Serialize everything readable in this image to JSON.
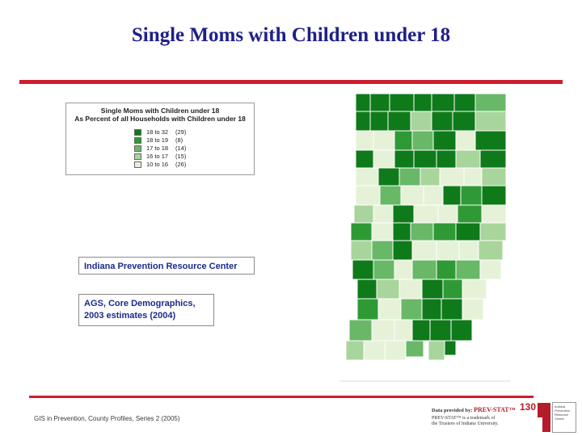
{
  "slide": {
    "title": "Single Moms with Children under 18"
  },
  "legend": {
    "title_line1": "Single Moms with Children under 18",
    "title_line2": "As Percent of all Households with Children under 18",
    "items": [
      {
        "range": "18 to 32",
        "count": "(29)",
        "color": "#0f7a1a"
      },
      {
        "range": "18 to 19",
        "count": "(8)",
        "color": "#2f9a35"
      },
      {
        "range": "17 to 18",
        "count": "(14)",
        "color": "#69b868"
      },
      {
        "range": "16 to 17",
        "count": "(15)",
        "color": "#a8d59b"
      },
      {
        "range": "10 to 16",
        "count": "(26)",
        "color": "#e6f2d8"
      }
    ]
  },
  "boxes": {
    "organization": "Indiana Prevention Resource Center",
    "source_line1": "AGS, Core Demographics,",
    "source_line2": "2003 estimates (2004)"
  },
  "footer": {
    "citation": "GIS in Prevention, County Profiles, Series 2 (2005)",
    "credit_prefix": "Data provided by:",
    "credit_brand": "PREV-STAT™",
    "trademark_line1": "PREV-STAT™ is a trademark of",
    "trademark_line2": "the Trustees of Indiana University.",
    "page_number": "130"
  },
  "logo": {
    "line1": "Indiana",
    "line2": "Prevention",
    "line3": "Resource",
    "line4": "Center"
  }
}
